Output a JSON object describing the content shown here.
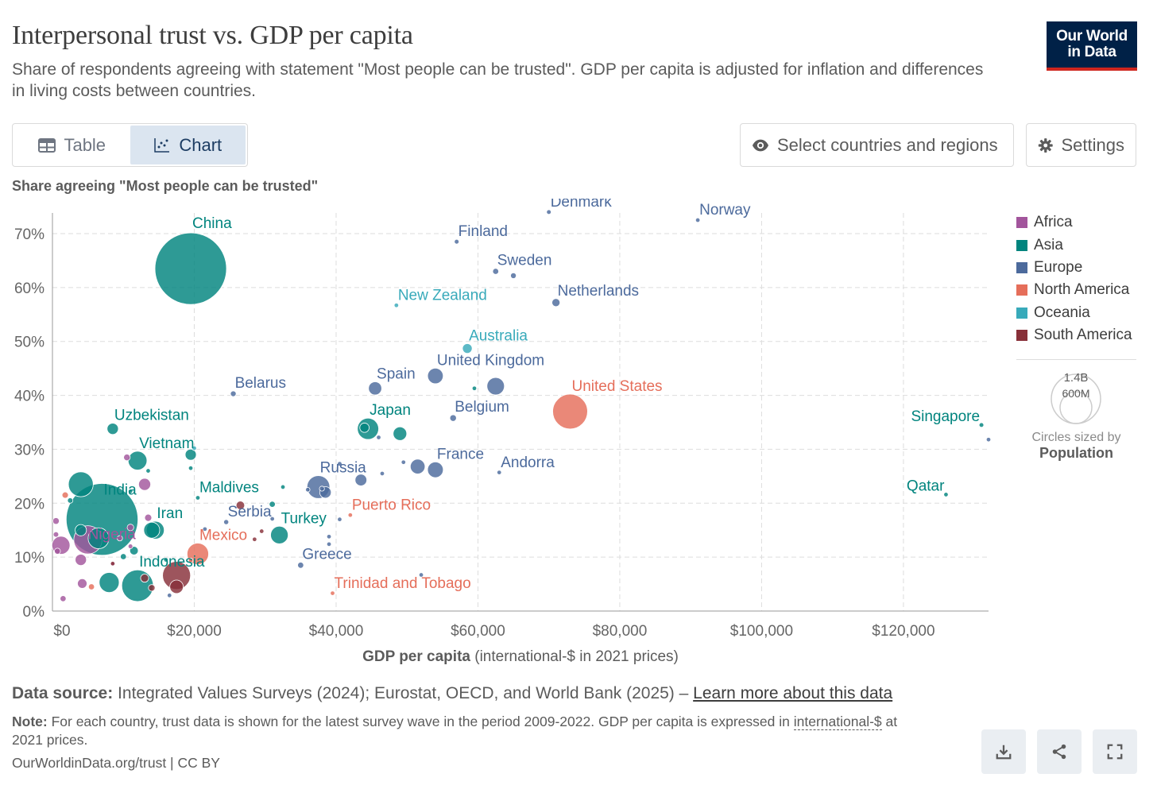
{
  "header": {
    "title": "Interpersonal trust vs. GDP per capita",
    "subtitle": "Share of respondents agreeing with statement \"Most people can be trusted\". GDP per capita is adjusted for inflation and differences in living costs between countries.",
    "logo_line1": "Our World",
    "logo_line2": "in Data"
  },
  "tabs": [
    {
      "label": "Table",
      "icon": "table-icon"
    },
    {
      "label": "Chart",
      "icon": "scatter-chart-icon"
    }
  ],
  "toolbar": {
    "select_label": "Select countries and regions",
    "settings_label": "Settings"
  },
  "axis": {
    "y_title": "Share agreeing \"Most people can be trusted\"",
    "x_title_bold": "GDP per capita",
    "x_title_rest": " (international-$ in 2021 prices)"
  },
  "legend": {
    "items": [
      {
        "label": "Africa",
        "color": "#a2559c"
      },
      {
        "label": "Asia",
        "color": "#00847e"
      },
      {
        "label": "Europe",
        "color": "#4c6a9c"
      },
      {
        "label": "North America",
        "color": "#e56e5a"
      },
      {
        "label": "Oceania",
        "color": "#38aaba"
      },
      {
        "label": "South America",
        "color": "#883039"
      }
    ],
    "size_big": "1.4B",
    "size_small": "600M",
    "size_caption": "Circles sized by",
    "size_metric": "Population"
  },
  "footer": {
    "source_label": "Data source:",
    "source_text": " Integrated Values Surveys (2024); Eurostat, OECD, and World Bank (2025) – ",
    "source_link": "Learn more about this data",
    "note_label": "Note:",
    "note_text": " For each country, trust data is shown for the latest survey wave in the period 2009-2022. GDP per capita is expressed in ",
    "note_link": "international-$",
    "note_end": " at 2021 prices.",
    "credit": "OurWorldinData.org/trust | CC BY"
  },
  "chart_data": {
    "type": "scatter",
    "title": "Interpersonal trust vs. GDP per capita",
    "xlabel": "GDP per capita (international-$ in 2021 prices)",
    "ylabel": "Share agreeing \"Most people can be trusted\"",
    "xlim": [
      0,
      132000
    ],
    "ylim": [
      0,
      73
    ],
    "x_ticks": [
      0,
      20000,
      40000,
      60000,
      80000,
      100000,
      120000
    ],
    "x_tick_labels": [
      "$0",
      "$20,000",
      "$40,000",
      "$60,000",
      "$80,000",
      "$100,000",
      "$120,000"
    ],
    "y_ticks": [
      0,
      10,
      20,
      30,
      40,
      50,
      60,
      70
    ],
    "y_tick_labels": [
      "0%",
      "10%",
      "20%",
      "30%",
      "40%",
      "50%",
      "60%",
      "70%"
    ],
    "grid": true,
    "legend_position": "right",
    "points": [
      {
        "label": "China",
        "region": "Asia",
        "x": 19500,
        "y": 63.5,
        "pop": 1410,
        "labeled": true
      },
      {
        "label": "India",
        "region": "Asia",
        "x": 7000,
        "y": 17,
        "pop": 1420,
        "labeled": true
      },
      {
        "label": "Nigeria",
        "region": "Africa",
        "x": 5000,
        "y": 13.2,
        "pop": 220,
        "labeled": true
      },
      {
        "label": "Indonesia",
        "region": "Asia",
        "x": 12000,
        "y": 4.7,
        "pop": 275,
        "labeled": true
      },
      {
        "label": "United States",
        "region": "North America",
        "x": 73000,
        "y": 37,
        "pop": 335,
        "labeled": true
      },
      {
        "label": "Denmark",
        "region": "Europe",
        "x": 70000,
        "y": 74,
        "pop": 6,
        "labeled": true
      },
      {
        "label": "Norway",
        "region": "Europe",
        "x": 91000,
        "y": 72.5,
        "pop": 5,
        "labeled": true
      },
      {
        "label": "Finland",
        "region": "Europe",
        "x": 57000,
        "y": 68.5,
        "pop": 6,
        "labeled": true
      },
      {
        "label": "Sweden",
        "region": "Europe",
        "x": 62500,
        "y": 63,
        "pop": 10,
        "labeled": true
      },
      {
        "label": "Netherlands",
        "region": "Europe",
        "x": 71000,
        "y": 57.2,
        "pop": 18,
        "labeled": true
      },
      {
        "label": "New Zealand",
        "region": "Oceania",
        "x": 48500,
        "y": 56.7,
        "pop": 5,
        "labeled": true
      },
      {
        "label": "Australia",
        "region": "Oceania",
        "x": 58500,
        "y": 48.7,
        "pop": 26,
        "labeled": true
      },
      {
        "label": "United Kingdom",
        "region": "Europe",
        "x": 54000,
        "y": 43.6,
        "pop": 67,
        "labeled": true
      },
      {
        "label": "Spain",
        "region": "Europe",
        "x": 45500,
        "y": 41.3,
        "pop": 48,
        "labeled": true
      },
      {
        "label": "Belarus",
        "region": "Europe",
        "x": 25500,
        "y": 40.3,
        "pop": 9,
        "labeled": true
      },
      {
        "label": "Belgium",
        "region": "Europe",
        "x": 56500,
        "y": 35.8,
        "pop": 12,
        "labeled": true
      },
      {
        "label": "Japan",
        "region": "Asia",
        "x": 44500,
        "y": 33.8,
        "pop": 125,
        "labeled": true
      },
      {
        "label": "Uzbekistan",
        "region": "Asia",
        "x": 8500,
        "y": 33.8,
        "pop": 35,
        "labeled": true
      },
      {
        "label": "Vietnam",
        "region": "Asia",
        "x": 12000,
        "y": 27.9,
        "pop": 98,
        "labeled": true
      },
      {
        "label": "Singapore",
        "region": "Asia",
        "x": 131000,
        "y": 34.5,
        "pop": 6,
        "labeled": true
      },
      {
        "label": "Qatar",
        "region": "Asia",
        "x": 126000,
        "y": 21.6,
        "pop": 3,
        "labeled": true
      },
      {
        "label": "France",
        "region": "Europe",
        "x": 54000,
        "y": 26.2,
        "pop": 68,
        "labeled": true
      },
      {
        "label": "Andorra",
        "region": "Europe",
        "x": 63000,
        "y": 25.7,
        "pop": 0.08,
        "labeled": true
      },
      {
        "label": "Russia",
        "region": "Europe",
        "x": 37500,
        "y": 23,
        "pop": 144,
        "labeled": true
      },
      {
        "label": "Maldives",
        "region": "Asia",
        "x": 20500,
        "y": 21,
        "pop": 0.5,
        "labeled": true
      },
      {
        "label": "Puerto Rico",
        "region": "North America",
        "x": 42000,
        "y": 17.8,
        "pop": 3,
        "labeled": true
      },
      {
        "label": "Serbia",
        "region": "Europe",
        "x": 24500,
        "y": 16.5,
        "pop": 7,
        "labeled": true
      },
      {
        "label": "Iran",
        "region": "Asia",
        "x": 14500,
        "y": 15,
        "pop": 88,
        "labeled": true
      },
      {
        "label": "Turkey",
        "region": "Asia",
        "x": 32000,
        "y": 14.1,
        "pop": 85,
        "labeled": true
      },
      {
        "label": "Mexico",
        "region": "North America",
        "x": 20500,
        "y": 10.6,
        "pop": 128,
        "labeled": true
      },
      {
        "label": "Greece",
        "region": "Europe",
        "x": 35000,
        "y": 8.5,
        "pop": 10,
        "labeled": true
      },
      {
        "label": "Trinidad and Tobago",
        "region": "North America",
        "x": 39500,
        "y": 3.3,
        "pop": 1.5,
        "labeled": true
      },
      {
        "label": "",
        "region": "Asia",
        "x": 4000,
        "y": 23.5,
        "pop": 170
      },
      {
        "label": "",
        "region": "Asia",
        "x": 6500,
        "y": 13.5,
        "pop": 120
      },
      {
        "label": "",
        "region": "Asia",
        "x": 4000,
        "y": 15,
        "pop": 35
      },
      {
        "label": "",
        "region": "Asia",
        "x": 14000,
        "y": 15,
        "pop": 70
      },
      {
        "label": "",
        "region": "Asia",
        "x": 8000,
        "y": 5.3,
        "pop": 110
      },
      {
        "label": "",
        "region": "Asia",
        "x": 11500,
        "y": 11.2,
        "pop": 20
      },
      {
        "label": "",
        "region": "Asia",
        "x": 13500,
        "y": 26,
        "pop": 3
      },
      {
        "label": "",
        "region": "Asia",
        "x": 19500,
        "y": 26.5,
        "pop": 3
      },
      {
        "label": "",
        "region": "Asia",
        "x": 19500,
        "y": 29,
        "pop": 34
      },
      {
        "label": "",
        "region": "Asia",
        "x": 31000,
        "y": 19.8,
        "pop": 10
      },
      {
        "label": "",
        "region": "Asia",
        "x": 32500,
        "y": 23,
        "pop": 4
      },
      {
        "label": "",
        "region": "Asia",
        "x": 49000,
        "y": 32.9,
        "pop": 51
      },
      {
        "label": "",
        "region": "Asia",
        "x": 44000,
        "y": 34,
        "pop": 24
      },
      {
        "label": "",
        "region": "Asia",
        "x": 59500,
        "y": 41.3,
        "pop": 4
      },
      {
        "label": "",
        "region": "Asia",
        "x": 2500,
        "y": 20.5,
        "pop": 8
      },
      {
        "label": "",
        "region": "Asia",
        "x": 11000,
        "y": 22.2,
        "pop": 5
      },
      {
        "label": "",
        "region": "Asia",
        "x": 16000,
        "y": 9.5,
        "pop": 5
      },
      {
        "label": "",
        "region": "Asia",
        "x": 10000,
        "y": 10.1,
        "pop": 10
      },
      {
        "label": "",
        "region": "Africa",
        "x": 1200,
        "y": 12.2,
        "pop": 90
      },
      {
        "label": "",
        "region": "Africa",
        "x": 4000,
        "y": 9.5,
        "pop": 35
      },
      {
        "label": "",
        "region": "Africa",
        "x": 4200,
        "y": 5.1,
        "pop": 25
      },
      {
        "label": "",
        "region": "Africa",
        "x": 1500,
        "y": 2.3,
        "pop": 10
      },
      {
        "label": "",
        "region": "Africa",
        "x": 500,
        "y": 16.7,
        "pop": 12
      },
      {
        "label": "",
        "region": "Africa",
        "x": 500,
        "y": 14.2,
        "pop": 8
      },
      {
        "label": "",
        "region": "Africa",
        "x": 700,
        "y": 11.1,
        "pop": 10
      },
      {
        "label": "",
        "region": "Africa",
        "x": 10500,
        "y": 28.5,
        "pop": 12
      },
      {
        "label": "",
        "region": "Africa",
        "x": 13000,
        "y": 23.5,
        "pop": 40
      },
      {
        "label": "",
        "region": "Africa",
        "x": 13500,
        "y": 17.3,
        "pop": 14
      },
      {
        "label": "",
        "region": "Africa",
        "x": 11000,
        "y": 15.5,
        "pop": 12
      },
      {
        "label": "",
        "region": "Africa",
        "x": 11000,
        "y": 12,
        "pop": 6
      },
      {
        "label": "",
        "region": "Africa",
        "x": 9500,
        "y": 13.5,
        "pop": 8
      },
      {
        "label": "",
        "region": "Africa",
        "x": 8500,
        "y": 8.7,
        "pop": 5
      },
      {
        "label": "",
        "region": "South America",
        "x": 17500,
        "y": 6.6,
        "pop": 215
      },
      {
        "label": "",
        "region": "South America",
        "x": 17500,
        "y": 4.5,
        "pop": 50
      },
      {
        "label": "",
        "region": "South America",
        "x": 14000,
        "y": 4.3,
        "pop": 12
      },
      {
        "label": "",
        "region": "South America",
        "x": 26500,
        "y": 19.6,
        "pop": 20
      },
      {
        "label": "",
        "region": "South America",
        "x": 28500,
        "y": 13.3,
        "pop": 4
      },
      {
        "label": "",
        "region": "South America",
        "x": 29500,
        "y": 14.8,
        "pop": 3
      },
      {
        "label": "",
        "region": "South America",
        "x": 8500,
        "y": 8.8,
        "pop": 4
      },
      {
        "label": "",
        "region": "South America",
        "x": 13000,
        "y": 6.1,
        "pop": 18
      },
      {
        "label": "",
        "region": "North America",
        "x": 5500,
        "y": 4.5,
        "pop": 10
      },
      {
        "label": "",
        "region": "North America",
        "x": 1800,
        "y": 21.5,
        "pop": 11
      },
      {
        "label": "",
        "region": "North America",
        "x": 19500,
        "y": 9.4,
        "pop": 5
      },
      {
        "label": "",
        "region": "Europe",
        "x": 38500,
        "y": 22,
        "pop": 36
      },
      {
        "label": "",
        "region": "Europe",
        "x": 36000,
        "y": 22.5,
        "pop": 5
      },
      {
        "label": "",
        "region": "Europe",
        "x": 40500,
        "y": 27.3,
        "pop": 6
      },
      {
        "label": "",
        "region": "Europe",
        "x": 43500,
        "y": 24.3,
        "pop": 38
      },
      {
        "label": "",
        "region": "Europe",
        "x": 46500,
        "y": 25.5,
        "pop": 5
      },
      {
        "label": "",
        "region": "Europe",
        "x": 49500,
        "y": 27.6,
        "pop": 4
      },
      {
        "label": "",
        "region": "Europe",
        "x": 51500,
        "y": 26.8,
        "pop": 60
      },
      {
        "label": "",
        "region": "Europe",
        "x": 46000,
        "y": 32.2,
        "pop": 4
      },
      {
        "label": "",
        "region": "Europe",
        "x": 62500,
        "y": 41.7,
        "pop": 84
      },
      {
        "label": "",
        "region": "Europe",
        "x": 65000,
        "y": 62.2,
        "pop": 9
      },
      {
        "label": "",
        "region": "Europe",
        "x": 40500,
        "y": 17,
        "pop": 3
      },
      {
        "label": "",
        "region": "Europe",
        "x": 39000,
        "y": 13.8,
        "pop": 3
      },
      {
        "label": "",
        "region": "Europe",
        "x": 39000,
        "y": 12.4,
        "pop": 3
      },
      {
        "label": "",
        "region": "Europe",
        "x": 31000,
        "y": 17.1,
        "pop": 3
      },
      {
        "label": "",
        "region": "Europe",
        "x": 21500,
        "y": 15.2,
        "pop": 3
      },
      {
        "label": "",
        "region": "Europe",
        "x": 16500,
        "y": 2.9,
        "pop": 3
      },
      {
        "label": "",
        "region": "Europe",
        "x": 52000,
        "y": 6.7,
        "pop": 1
      },
      {
        "label": "",
        "region": "Europe",
        "x": 132000,
        "y": 31.8,
        "pop": 0.7
      },
      {
        "label": "",
        "region": "Europe",
        "x": 38000,
        "y": 22.7,
        "pop": 7
      },
      {
        "label": "",
        "region": "Oceania",
        "x": 20000,
        "y": 30.2,
        "pop": 1
      }
    ]
  }
}
